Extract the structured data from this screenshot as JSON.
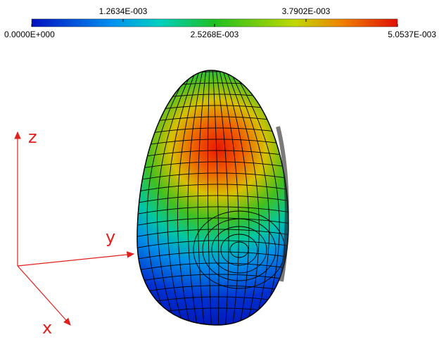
{
  "colorbar": {
    "ticks": [
      {
        "value": 0,
        "label": "0.0000E+000"
      },
      {
        "value": 0.0012634,
        "label": "1.2634E-003"
      },
      {
        "value": 0.0025268,
        "label": "2.5268E-003"
      },
      {
        "value": 0.0037902,
        "label": "3.7902E-003"
      },
      {
        "value": 0.0050537,
        "label": "5.0537E-003"
      }
    ]
  },
  "axes": {
    "z": "z",
    "y": "y",
    "x": "x"
  }
}
